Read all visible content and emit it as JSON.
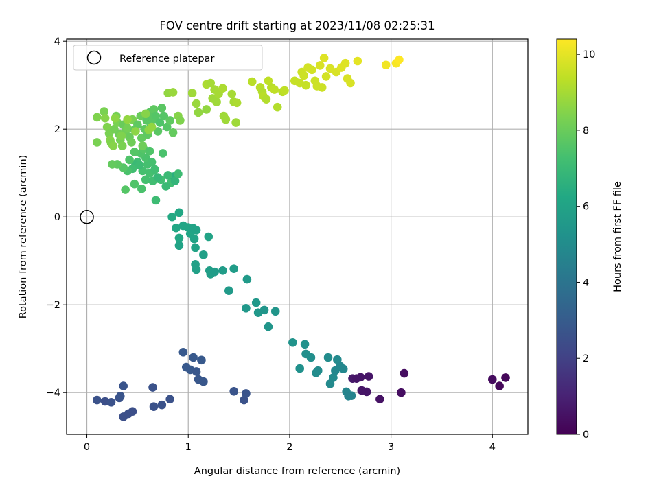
{
  "chart_data": {
    "type": "scatter",
    "title": "FOV centre drift starting at 2023/11/08 02:25:31",
    "xlabel": "Angular distance from reference (arcmin)",
    "ylabel": "Rotation from reference (arcmin)",
    "xlim": [
      -0.2,
      4.35
    ],
    "ylim": [
      -4.95,
      4.05
    ],
    "xticks": [
      0,
      1,
      2,
      3,
      4
    ],
    "yticks": [
      -4,
      -2,
      0,
      2,
      4
    ],
    "xtick_labels": [
      "0",
      "1",
      "2",
      "3",
      "4"
    ],
    "ytick_labels": [
      "−4",
      "−2",
      "0",
      "2",
      "4"
    ],
    "grid": true,
    "legend": {
      "position": "top-left",
      "entries": [
        "Reference platepar"
      ]
    },
    "reference_point": {
      "x": 0,
      "y": 0,
      "name": "Reference platepar"
    },
    "colorbar": {
      "label": "Hours from first FF file",
      "colormap": "viridis",
      "range": [
        0,
        10.4
      ],
      "ticks": [
        0,
        2,
        4,
        6,
        8,
        10
      ],
      "tick_labels": [
        "0",
        "2",
        "4",
        "6",
        "8",
        "10"
      ]
    },
    "points": [
      {
        "x": 0.1,
        "y": -4.17,
        "h": 2.6
      },
      {
        "x": 0.18,
        "y": -4.2,
        "h": 2.5
      },
      {
        "x": 0.24,
        "y": -4.22,
        "h": 2.6
      },
      {
        "x": 0.32,
        "y": -4.12,
        "h": 2.6
      },
      {
        "x": 0.33,
        "y": -4.08,
        "h": 2.7
      },
      {
        "x": 0.36,
        "y": -3.85,
        "h": 2.7
      },
      {
        "x": 0.36,
        "y": -4.55,
        "h": 2.5
      },
      {
        "x": 0.41,
        "y": -4.48,
        "h": 2.5
      },
      {
        "x": 0.45,
        "y": -4.43,
        "h": 2.5
      },
      {
        "x": 0.65,
        "y": -3.88,
        "h": 2.6
      },
      {
        "x": 0.66,
        "y": -4.32,
        "h": 2.6
      },
      {
        "x": 0.74,
        "y": -4.28,
        "h": 2.6
      },
      {
        "x": 0.82,
        "y": -4.15,
        "h": 2.6
      },
      {
        "x": 0.95,
        "y": -3.08,
        "h": 2.9
      },
      {
        "x": 0.98,
        "y": -3.42,
        "h": 2.9
      },
      {
        "x": 1.02,
        "y": -3.48,
        "h": 2.9
      },
      {
        "x": 1.05,
        "y": -3.2,
        "h": 2.9
      },
      {
        "x": 1.08,
        "y": -3.52,
        "h": 2.8
      },
      {
        "x": 1.1,
        "y": -3.7,
        "h": 2.8
      },
      {
        "x": 1.13,
        "y": -3.26,
        "h": 2.9
      },
      {
        "x": 1.15,
        "y": -3.75,
        "h": 2.8
      },
      {
        "x": 1.45,
        "y": -3.97,
        "h": 2.7
      },
      {
        "x": 1.55,
        "y": -4.17,
        "h": 2.6
      },
      {
        "x": 1.57,
        "y": -4.02,
        "h": 2.7
      },
      {
        "x": 0.83,
        "y": 0.78,
        "h": 7.2
      },
      {
        "x": 0.86,
        "y": 0.92,
        "h": 6.5
      },
      {
        "x": 0.87,
        "y": 0.82,
        "h": 6.8
      },
      {
        "x": 0.9,
        "y": 0.98,
        "h": 7.1
      },
      {
        "x": 0.84,
        "y": 0.0,
        "h": 6.3
      },
      {
        "x": 0.91,
        "y": 0.1,
        "h": 6.2
      },
      {
        "x": 0.88,
        "y": -0.25,
        "h": 6.2
      },
      {
        "x": 0.91,
        "y": -0.48,
        "h": 6.2
      },
      {
        "x": 0.91,
        "y": -0.65,
        "h": 6.0
      },
      {
        "x": 0.95,
        "y": -0.2,
        "h": 6.1
      },
      {
        "x": 1.0,
        "y": -0.24,
        "h": 6.1
      },
      {
        "x": 1.02,
        "y": -0.38,
        "h": 6.1
      },
      {
        "x": 1.05,
        "y": -0.26,
        "h": 6.0
      },
      {
        "x": 1.06,
        "y": -0.5,
        "h": 6.0
      },
      {
        "x": 1.07,
        "y": -0.7,
        "h": 6.0
      },
      {
        "x": 1.08,
        "y": -0.3,
        "h": 6.0
      },
      {
        "x": 1.07,
        "y": -1.08,
        "h": 5.9
      },
      {
        "x": 1.08,
        "y": -1.2,
        "h": 5.9
      },
      {
        "x": 1.15,
        "y": -0.86,
        "h": 5.9
      },
      {
        "x": 1.2,
        "y": -0.45,
        "h": 6.0
      },
      {
        "x": 1.21,
        "y": -1.22,
        "h": 5.8
      },
      {
        "x": 1.22,
        "y": -1.3,
        "h": 5.8
      },
      {
        "x": 1.26,
        "y": -1.25,
        "h": 5.7
      },
      {
        "x": 1.34,
        "y": -1.22,
        "h": 5.7
      },
      {
        "x": 1.4,
        "y": -1.68,
        "h": 5.6
      },
      {
        "x": 1.45,
        "y": -1.18,
        "h": 5.7
      },
      {
        "x": 1.58,
        "y": -1.42,
        "h": 5.6
      },
      {
        "x": 1.57,
        "y": -2.08,
        "h": 5.5
      },
      {
        "x": 1.67,
        "y": -1.95,
        "h": 5.5
      },
      {
        "x": 1.69,
        "y": -2.18,
        "h": 5.5
      },
      {
        "x": 1.75,
        "y": -2.12,
        "h": 5.4
      },
      {
        "x": 1.79,
        "y": -2.5,
        "h": 5.4
      },
      {
        "x": 1.86,
        "y": -2.15,
        "h": 5.4
      },
      {
        "x": 2.03,
        "y": -2.86,
        "h": 5.3
      },
      {
        "x": 2.1,
        "y": -3.45,
        "h": 5.2
      },
      {
        "x": 2.15,
        "y": -2.9,
        "h": 5.2
      },
      {
        "x": 2.16,
        "y": -3.12,
        "h": 5.1
      },
      {
        "x": 2.21,
        "y": -3.2,
        "h": 5.1
      },
      {
        "x": 2.26,
        "y": -3.55,
        "h": 5.0
      },
      {
        "x": 2.28,
        "y": -3.5,
        "h": 5.0
      },
      {
        "x": 2.38,
        "y": -3.2,
        "h": 5.0
      },
      {
        "x": 2.4,
        "y": -3.8,
        "h": 4.9
      },
      {
        "x": 2.43,
        "y": -3.66,
        "h": 4.9
      },
      {
        "x": 2.45,
        "y": -3.5,
        "h": 4.8
      },
      {
        "x": 2.47,
        "y": -3.25,
        "h": 4.9
      },
      {
        "x": 2.5,
        "y": -3.4,
        "h": 4.8
      },
      {
        "x": 2.53,
        "y": -3.46,
        "h": 4.8
      },
      {
        "x": 2.56,
        "y": -3.98,
        "h": 4.7
      },
      {
        "x": 2.58,
        "y": -4.08,
        "h": 4.6
      },
      {
        "x": 2.61,
        "y": -4.07,
        "h": 4.6
      },
      {
        "x": 2.62,
        "y": -3.68,
        "h": 0.7
      },
      {
        "x": 2.66,
        "y": -3.68,
        "h": 0.6
      },
      {
        "x": 2.7,
        "y": -3.65,
        "h": 0.6
      },
      {
        "x": 2.71,
        "y": -3.95,
        "h": 0.6
      },
      {
        "x": 2.76,
        "y": -3.98,
        "h": 0.6
      },
      {
        "x": 2.78,
        "y": -3.63,
        "h": 0.6
      },
      {
        "x": 2.89,
        "y": -4.15,
        "h": 0.5
      },
      {
        "x": 3.1,
        "y": -4.0,
        "h": 0.4
      },
      {
        "x": 3.13,
        "y": -3.56,
        "h": 0.4
      },
      {
        "x": 4.0,
        "y": -3.7,
        "h": 0.3
      },
      {
        "x": 4.07,
        "y": -3.85,
        "h": 0.2
      },
      {
        "x": 4.13,
        "y": -3.66,
        "h": 0.2
      },
      {
        "x": 0.38,
        "y": 0.62,
        "h": 7.6
      },
      {
        "x": 0.47,
        "y": 0.75,
        "h": 7.5
      },
      {
        "x": 0.54,
        "y": 0.64,
        "h": 7.4
      },
      {
        "x": 0.58,
        "y": 0.85,
        "h": 7.3
      },
      {
        "x": 0.68,
        "y": 0.38,
        "h": 7.1
      },
      {
        "x": 0.73,
        "y": 0.85,
        "h": 7.2
      },
      {
        "x": 0.75,
        "y": 1.45,
        "h": 7.4
      },
      {
        "x": 0.78,
        "y": 0.7,
        "h": 7.0
      },
      {
        "x": 0.65,
        "y": 0.82,
        "h": 7.2
      },
      {
        "x": 0.62,
        "y": 1.0,
        "h": 7.3
      },
      {
        "x": 0.55,
        "y": 1.05,
        "h": 7.3
      },
      {
        "x": 0.5,
        "y": 1.25,
        "h": 7.2
      },
      {
        "x": 0.48,
        "y": 1.2,
        "h": 7.0
      },
      {
        "x": 0.45,
        "y": 1.1,
        "h": 7.2
      },
      {
        "x": 0.52,
        "y": 1.18,
        "h": 7.1
      },
      {
        "x": 0.6,
        "y": 1.2,
        "h": 7.3
      },
      {
        "x": 0.58,
        "y": 1.35,
        "h": 7.4
      },
      {
        "x": 0.53,
        "y": 1.45,
        "h": 7.5
      },
      {
        "x": 0.47,
        "y": 1.48,
        "h": 7.6
      },
      {
        "x": 0.42,
        "y": 1.3,
        "h": 7.5
      },
      {
        "x": 0.56,
        "y": 1.55,
        "h": 7.6
      },
      {
        "x": 0.62,
        "y": 1.5,
        "h": 7.5
      },
      {
        "x": 0.64,
        "y": 1.25,
        "h": 7.3
      },
      {
        "x": 0.67,
        "y": 1.08,
        "h": 7.2
      },
      {
        "x": 0.4,
        "y": 1.05,
        "h": 7.4
      },
      {
        "x": 0.36,
        "y": 1.12,
        "h": 7.6
      },
      {
        "x": 0.3,
        "y": 1.2,
        "h": 7.8
      },
      {
        "x": 0.25,
        "y": 1.2,
        "h": 7.9
      },
      {
        "x": 0.8,
        "y": 0.95,
        "h": 7.0
      },
      {
        "x": 0.7,
        "y": 0.9,
        "h": 6.9
      },
      {
        "x": 0.1,
        "y": 1.7,
        "h": 8.3
      },
      {
        "x": 0.1,
        "y": 2.27,
        "h": 8.4
      },
      {
        "x": 0.17,
        "y": 2.4,
        "h": 8.3
      },
      {
        "x": 0.18,
        "y": 2.25,
        "h": 8.5
      },
      {
        "x": 0.2,
        "y": 2.05,
        "h": 8.4
      },
      {
        "x": 0.22,
        "y": 1.9,
        "h": 8.3
      },
      {
        "x": 0.23,
        "y": 1.75,
        "h": 8.5
      },
      {
        "x": 0.24,
        "y": 1.68,
        "h": 8.4
      },
      {
        "x": 0.27,
        "y": 2.0,
        "h": 8.2
      },
      {
        "x": 0.29,
        "y": 2.3,
        "h": 8.2
      },
      {
        "x": 0.3,
        "y": 2.15,
        "h": 8.3
      },
      {
        "x": 0.32,
        "y": 1.88,
        "h": 8.1
      },
      {
        "x": 0.33,
        "y": 1.75,
        "h": 8.2
      },
      {
        "x": 0.35,
        "y": 1.62,
        "h": 8.3
      },
      {
        "x": 0.36,
        "y": 2.1,
        "h": 8.0
      },
      {
        "x": 0.38,
        "y": 1.95,
        "h": 8.1
      },
      {
        "x": 0.4,
        "y": 2.03,
        "h": 8.2
      },
      {
        "x": 0.42,
        "y": 1.82,
        "h": 8.0
      },
      {
        "x": 0.44,
        "y": 1.7,
        "h": 8.1
      },
      {
        "x": 0.45,
        "y": 2.22,
        "h": 8.3
      },
      {
        "x": 0.47,
        "y": 1.98,
        "h": 7.9
      },
      {
        "x": 0.5,
        "y": 2.1,
        "h": 7.8
      },
      {
        "x": 0.53,
        "y": 2.3,
        "h": 8.0
      },
      {
        "x": 0.54,
        "y": 1.8,
        "h": 7.9
      },
      {
        "x": 0.55,
        "y": 1.62,
        "h": 8.1
      },
      {
        "x": 0.57,
        "y": 2.0,
        "h": 7.8
      },
      {
        "x": 0.59,
        "y": 2.2,
        "h": 7.7
      },
      {
        "x": 0.6,
        "y": 1.88,
        "h": 7.8
      },
      {
        "x": 0.62,
        "y": 2.38,
        "h": 7.7
      },
      {
        "x": 0.63,
        "y": 2.05,
        "h": 7.6
      },
      {
        "x": 0.65,
        "y": 2.22,
        "h": 7.7
      },
      {
        "x": 0.66,
        "y": 2.45,
        "h": 7.8
      },
      {
        "x": 0.68,
        "y": 2.3,
        "h": 7.6
      },
      {
        "x": 0.7,
        "y": 1.95,
        "h": 7.7
      },
      {
        "x": 0.72,
        "y": 2.15,
        "h": 7.5
      },
      {
        "x": 0.74,
        "y": 2.48,
        "h": 7.7
      },
      {
        "x": 0.76,
        "y": 2.3,
        "h": 7.6
      },
      {
        "x": 0.79,
        "y": 2.05,
        "h": 7.6
      },
      {
        "x": 0.82,
        "y": 2.2,
        "h": 7.8
      },
      {
        "x": 0.85,
        "y": 1.92,
        "h": 7.9
      },
      {
        "x": 0.8,
        "y": 2.82,
        "h": 8.7
      },
      {
        "x": 0.85,
        "y": 2.84,
        "h": 8.8
      },
      {
        "x": 0.9,
        "y": 2.3,
        "h": 8.5
      },
      {
        "x": 0.92,
        "y": 2.2,
        "h": 8.4
      },
      {
        "x": 0.28,
        "y": 2.25,
        "h": 8.6
      },
      {
        "x": 0.34,
        "y": 1.85,
        "h": 8.4
      },
      {
        "x": 0.48,
        "y": 1.95,
        "h": 8.6
      },
      {
        "x": 0.26,
        "y": 1.62,
        "h": 8.5
      },
      {
        "x": 0.61,
        "y": 1.98,
        "h": 8.6
      },
      {
        "x": 0.64,
        "y": 2.05,
        "h": 8.7
      },
      {
        "x": 0.58,
        "y": 2.35,
        "h": 8.5
      },
      {
        "x": 0.4,
        "y": 2.22,
        "h": 8.7
      },
      {
        "x": 1.04,
        "y": 2.82,
        "h": 8.9
      },
      {
        "x": 1.08,
        "y": 2.58,
        "h": 8.8
      },
      {
        "x": 1.1,
        "y": 2.38,
        "h": 8.7
      },
      {
        "x": 1.18,
        "y": 2.45,
        "h": 8.7
      },
      {
        "x": 1.18,
        "y": 3.02,
        "h": 9.1
      },
      {
        "x": 1.22,
        "y": 3.05,
        "h": 9.0
      },
      {
        "x": 1.24,
        "y": 2.7,
        "h": 8.9
      },
      {
        "x": 1.26,
        "y": 2.9,
        "h": 9.0
      },
      {
        "x": 1.28,
        "y": 2.62,
        "h": 8.9
      },
      {
        "x": 1.3,
        "y": 2.8,
        "h": 9.0
      },
      {
        "x": 1.34,
        "y": 2.93,
        "h": 9.1
      },
      {
        "x": 1.35,
        "y": 2.3,
        "h": 8.9
      },
      {
        "x": 1.37,
        "y": 2.22,
        "h": 8.9
      },
      {
        "x": 1.43,
        "y": 2.8,
        "h": 9.0
      },
      {
        "x": 1.45,
        "y": 2.62,
        "h": 9.0
      },
      {
        "x": 1.48,
        "y": 2.6,
        "h": 9.1
      },
      {
        "x": 1.47,
        "y": 2.15,
        "h": 8.9
      },
      {
        "x": 1.63,
        "y": 3.08,
        "h": 9.3
      },
      {
        "x": 1.71,
        "y": 2.95,
        "h": 9.3
      },
      {
        "x": 1.73,
        "y": 2.85,
        "h": 9.2
      },
      {
        "x": 1.74,
        "y": 2.75,
        "h": 9.3
      },
      {
        "x": 1.77,
        "y": 2.68,
        "h": 9.2
      },
      {
        "x": 1.79,
        "y": 3.1,
        "h": 9.4
      },
      {
        "x": 1.82,
        "y": 2.95,
        "h": 9.3
      },
      {
        "x": 1.85,
        "y": 2.9,
        "h": 9.4
      },
      {
        "x": 1.88,
        "y": 2.5,
        "h": 9.2
      },
      {
        "x": 1.93,
        "y": 2.85,
        "h": 9.3
      },
      {
        "x": 1.95,
        "y": 2.88,
        "h": 9.4
      },
      {
        "x": 2.05,
        "y": 3.1,
        "h": 9.5
      },
      {
        "x": 2.1,
        "y": 3.05,
        "h": 9.5
      },
      {
        "x": 2.12,
        "y": 3.3,
        "h": 9.6
      },
      {
        "x": 2.14,
        "y": 3.22,
        "h": 9.6
      },
      {
        "x": 2.16,
        "y": 3.0,
        "h": 9.5
      },
      {
        "x": 2.18,
        "y": 3.4,
        "h": 9.7
      },
      {
        "x": 2.22,
        "y": 3.35,
        "h": 9.7
      },
      {
        "x": 2.25,
        "y": 3.1,
        "h": 9.6
      },
      {
        "x": 2.27,
        "y": 2.98,
        "h": 9.6
      },
      {
        "x": 2.3,
        "y": 3.45,
        "h": 9.8
      },
      {
        "x": 2.32,
        "y": 2.95,
        "h": 9.6
      },
      {
        "x": 2.34,
        "y": 3.62,
        "h": 9.9
      },
      {
        "x": 2.36,
        "y": 3.2,
        "h": 9.7
      },
      {
        "x": 2.4,
        "y": 3.38,
        "h": 9.8
      },
      {
        "x": 2.46,
        "y": 3.3,
        "h": 9.8
      },
      {
        "x": 2.51,
        "y": 3.4,
        "h": 9.9
      },
      {
        "x": 2.55,
        "y": 3.5,
        "h": 9.9
      },
      {
        "x": 2.57,
        "y": 3.15,
        "h": 9.8
      },
      {
        "x": 2.6,
        "y": 3.05,
        "h": 9.8
      },
      {
        "x": 2.67,
        "y": 3.55,
        "h": 10.0
      },
      {
        "x": 2.95,
        "y": 3.46,
        "h": 10.2
      },
      {
        "x": 3.05,
        "y": 3.5,
        "h": 10.3
      },
      {
        "x": 3.08,
        "y": 3.58,
        "h": 10.4
      }
    ]
  }
}
